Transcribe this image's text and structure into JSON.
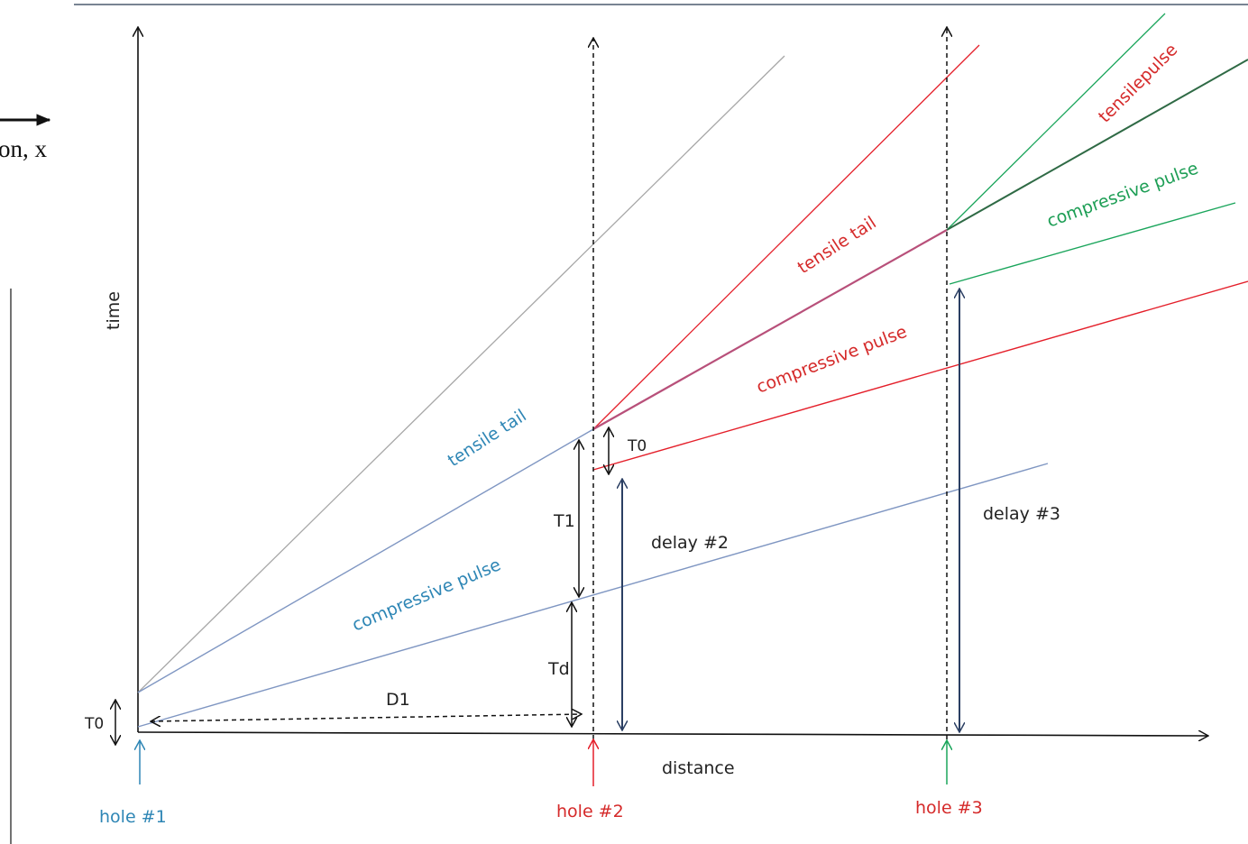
{
  "colors": {
    "axis": "#111111",
    "blue_line": "#7f96c2",
    "blue_text": "#2e86b5",
    "red_line": "#e41f2a",
    "red_text": "#d52a2a",
    "green_line": "#1aa55b",
    "green_text": "#1d9e55",
    "navy_arrow": "#2b3f63",
    "gray_line": "#a7a7a7"
  },
  "fragment": {
    "text": "on, x"
  },
  "axes": {
    "time": "time",
    "distance": "distance"
  },
  "holes": {
    "h1": "hole #1",
    "h2": "hole #2",
    "h3": "hole #3"
  },
  "blue_labels": {
    "tensile_tail": "tensile tail",
    "compressive_pulse": "compressive pulse"
  },
  "red_labels": {
    "tensile_tail": "tensile tail",
    "compressive_pulse": "compressive pulse"
  },
  "green_labels": {
    "tensile_pulse": "tensilepulse",
    "compressive_pulse": "compressive pulse"
  },
  "dims": {
    "t0_origin": "T0",
    "t0_hole2": "T0",
    "t1": "T1",
    "td": "Td",
    "d1": "D1",
    "delay2": "delay #2",
    "delay3": "delay #3"
  }
}
